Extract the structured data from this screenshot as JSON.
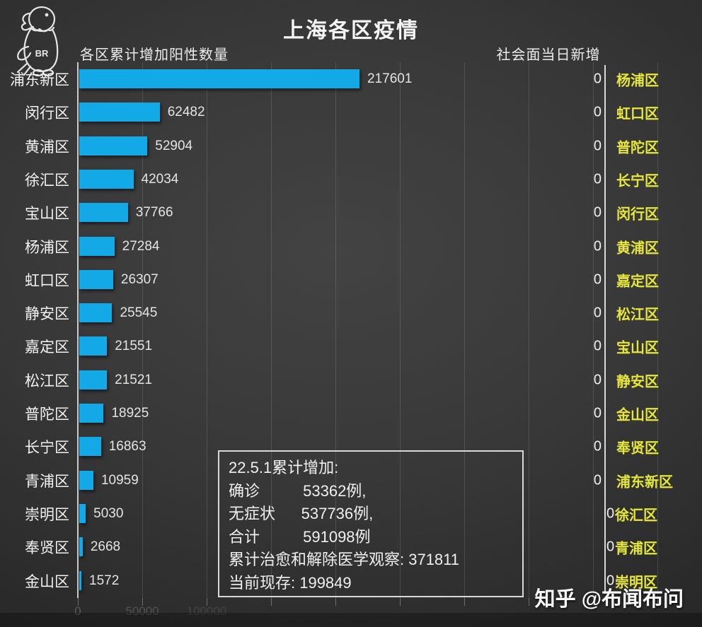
{
  "header": {
    "title": "上海各区疫情",
    "left_subtitle": "各区累计增加阳性数量",
    "right_subtitle": "社会面当日新增",
    "logo_text": "BR"
  },
  "watermark": "知乎 @布闻布问",
  "colors": {
    "bar": "#12a9e6",
    "district_yellow": "#e6e73a",
    "axis": "#d9d9d9",
    "background_center": "#434343",
    "background_edge": "#1f1f1f"
  },
  "x_axis": {
    "tick_labels": [
      "0",
      "50000",
      "100000"
    ],
    "tick_label_colors": [
      "#5a5a5a",
      "#525252",
      "#424242"
    ],
    "tick_step": 50000
  },
  "summary_box": {
    "lines": [
      "22.5.1累计增加:",
      "确诊          53362例,",
      "无症状      537736例,",
      "合计          591098例",
      "累计治愈和解除医学观察: 371811",
      "当前现存: 199849"
    ]
  },
  "chart_data": [
    {
      "type": "bar",
      "orientation": "horizontal",
      "title": "各区累计增加阳性数量",
      "categories": [
        "浦东新区",
        "闵行区",
        "黄浦区",
        "徐汇区",
        "宝山区",
        "杨浦区",
        "虹口区",
        "静安区",
        "嘉定区",
        "松江区",
        "普陀区",
        "长宁区",
        "青浦区",
        "崇明区",
        "奉贤区",
        "金山区"
      ],
      "values": [
        217601,
        62482,
        52904,
        42034,
        37766,
        27284,
        26307,
        25545,
        21551,
        21521,
        18925,
        16863,
        10959,
        5030,
        2668,
        1572
      ],
      "xlim": [
        0,
        250000
      ],
      "grid": true,
      "bar_color": "#12a9e6"
    },
    {
      "type": "bar",
      "orientation": "horizontal",
      "title": "社会面当日新增",
      "categories": [
        "杨浦区",
        "虹口区",
        "普陀区",
        "长宁区",
        "闵行区",
        "黄浦区",
        "嘉定区",
        "松江区",
        "宝山区",
        "静安区",
        "金山区",
        "奉贤区",
        "浦东新区",
        "徐汇区",
        "青浦区",
        "崇明区"
      ],
      "values": [
        0,
        0,
        0,
        0,
        0,
        0,
        0,
        0,
        0,
        0,
        0,
        0,
        0,
        0,
        0,
        0
      ],
      "zero_right_rows": [
        13,
        14,
        15
      ],
      "label_color": "#e6e73a"
    }
  ]
}
